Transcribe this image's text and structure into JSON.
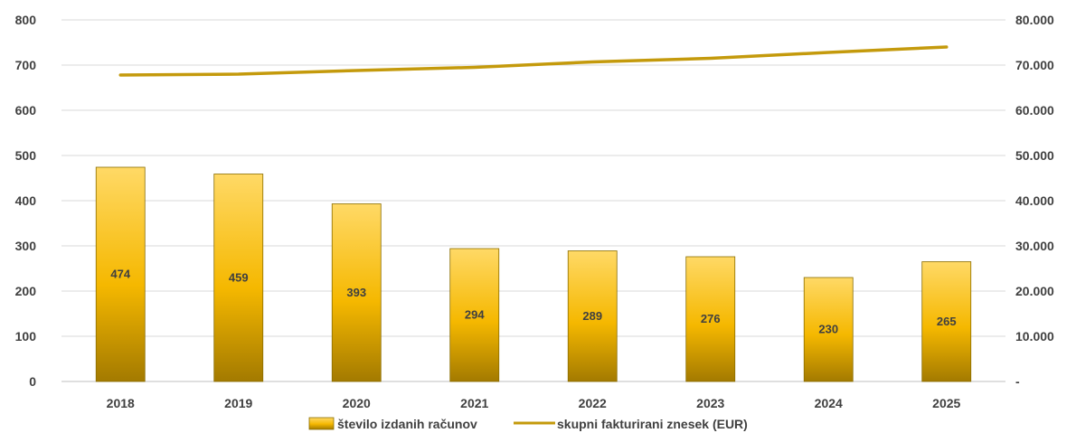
{
  "chart_data": {
    "type": "bar",
    "categories": [
      "2018",
      "2019",
      "2020",
      "2021",
      "2022",
      "2023",
      "2024",
      "2025"
    ],
    "series": [
      {
        "name": "število izdanih računov",
        "type": "bar",
        "axis": "left",
        "values": [
          474,
          459,
          393,
          294,
          289,
          276,
          230,
          265
        ],
        "data_labels": [
          "474",
          "459",
          "393",
          "294",
          "289",
          "276",
          "230",
          "265"
        ],
        "color": "#F5B800"
      },
      {
        "name": "skupni fakturirani znesek (EUR)",
        "type": "line",
        "axis": "right",
        "values": [
          67800,
          68000,
          68800,
          69500,
          70700,
          71500,
          72800,
          74000
        ],
        "color": "#C49A0C"
      }
    ],
    "y_left": {
      "ylim": [
        0,
        800
      ],
      "ticks": [
        "0",
        "100",
        "200",
        "300",
        "400",
        "500",
        "600",
        "700",
        "800"
      ]
    },
    "y_right": {
      "ylim": [
        0,
        80000
      ],
      "ticks": [
        "-",
        "10.000",
        "20.000",
        "30.000",
        "40.000",
        "50.000",
        "60.000",
        "70.000",
        "80.000"
      ]
    },
    "title": "",
    "xlabel": "",
    "grid": true,
    "legend_position": "bottom"
  }
}
